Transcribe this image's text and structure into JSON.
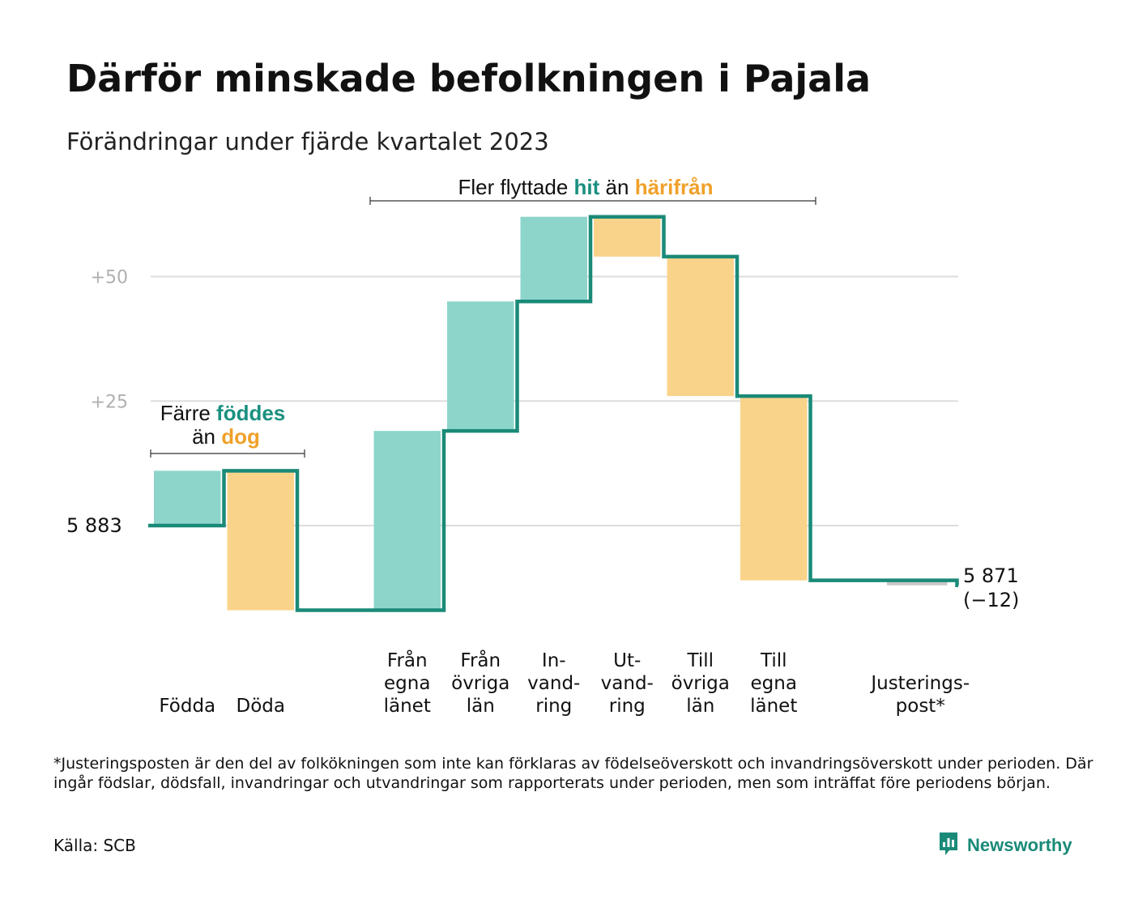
{
  "title": "Därför minskade befolkningen i Pajala",
  "subtitle": "Förändringar under fjärde kvartalet 2023",
  "annotations": {
    "births_group": {
      "line1_pre": "Färre ",
      "line1_hl": "föddes",
      "line2_pre": "än ",
      "line2_hl": "dog"
    },
    "migration_group": {
      "pre": "Fler flyttade ",
      "hl1": "hit",
      "mid": " än ",
      "hl2": "härifrån"
    }
  },
  "start_label": "5 883",
  "end_label": {
    "line1": "5 871",
    "line2": "(−12)"
  },
  "footnote": "*Justeringsposten är den del av folkökningen som inte kan förklaras av födelseöverskott och invandringsöverskott under perioden. Där ingår födslar, dödsfall, invandringar och utvandringar som rapporterats under perioden, men som inträffat före periodens början.",
  "source": "Källa: SCB",
  "brand": "Newsworthy",
  "colors": {
    "increase": "#8dd5cb",
    "decrease": "#fad38b",
    "line": "#1a8a78",
    "hl_increase": "#1a9080",
    "hl_decrease": "#f0a12a",
    "grid": "#dddddd",
    "tick_text": "#b0b0b0",
    "adjustment": "#c8c8c8"
  },
  "chart_data": {
    "type": "waterfall",
    "start_value": 5883,
    "end_value": 5871,
    "net_change": -12,
    "y_ticks": [
      {
        "value": 25,
        "label": "+25"
      },
      {
        "value": 50,
        "label": "+50"
      }
    ],
    "ylim": [
      -18,
      66
    ],
    "grid": true,
    "steps": [
      {
        "label": [
          "Födda"
        ],
        "value": 11,
        "kind": "increase"
      },
      {
        "label": [
          "Döda"
        ],
        "value": -28,
        "kind": "decrease"
      },
      {
        "label": [],
        "value": 0,
        "kind": "gap"
      },
      {
        "label": [
          "Från",
          "egna",
          "länet"
        ],
        "value": 36,
        "kind": "increase"
      },
      {
        "label": [
          "Från",
          "övriga",
          "län"
        ],
        "value": 26,
        "kind": "increase"
      },
      {
        "label": [
          "In-",
          "vand-",
          "ring"
        ],
        "value": 17,
        "kind": "increase"
      },
      {
        "label": [
          "Ut-",
          "vand-",
          "ring"
        ],
        "value": -8,
        "kind": "decrease"
      },
      {
        "label": [
          "Till",
          "övriga",
          "län"
        ],
        "value": -28,
        "kind": "decrease"
      },
      {
        "label": [
          "Till",
          "egna",
          "länet"
        ],
        "value": -37,
        "kind": "decrease"
      },
      {
        "label": [],
        "value": 0,
        "kind": "gap"
      },
      {
        "label": [
          "Justerings-",
          "post*"
        ],
        "value": -1,
        "kind": "adjustment"
      }
    ]
  }
}
